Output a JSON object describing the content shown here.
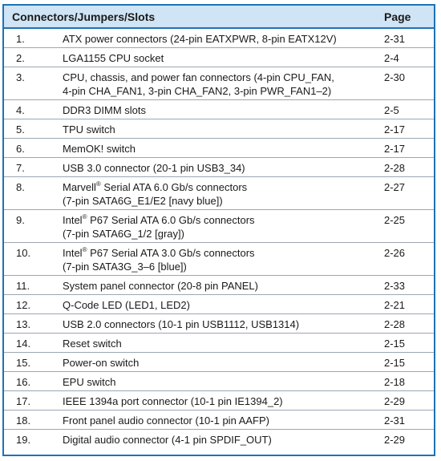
{
  "header": {
    "col_item": "Connectors/Jumpers/Slots",
    "col_page": "Page"
  },
  "rows": [
    {
      "num": "1.",
      "lines": [
        "ATX power connectors (24-pin EATXPWR, 8-pin EATX12V)"
      ],
      "page": "2-31"
    },
    {
      "num": "2.",
      "lines": [
        "LGA1155 CPU socket"
      ],
      "page": "2-4"
    },
    {
      "num": "3.",
      "lines": [
        "CPU, chassis, and power fan connectors (4-pin CPU_FAN,",
        "4-pin CHA_FAN1, 3-pin CHA_FAN2, 3-pin PWR_FAN1–2)"
      ],
      "page": "2-30"
    },
    {
      "num": "4.",
      "lines": [
        "DDR3 DIMM slots"
      ],
      "page": "2-5"
    },
    {
      "num": "5.",
      "lines": [
        "TPU switch"
      ],
      "page": "2-17"
    },
    {
      "num": "6.",
      "lines": [
        "MemOK! switch"
      ],
      "page": "2-17"
    },
    {
      "num": "7.",
      "lines": [
        "USB 3.0 connector (20-1 pin USB3_34)"
      ],
      "page": "2-28"
    },
    {
      "num": "8.",
      "lines": [
        "Marvell® Serial ATA 6.0 Gb/s connectors",
        "(7-pin SATA6G_E1/E2 [navy blue])"
      ],
      "page": "2-27"
    },
    {
      "num": "9.",
      "lines": [
        "Intel® P67 Serial ATA 6.0 Gb/s connectors",
        "(7-pin SATA6G_1/2 [gray])"
      ],
      "page": "2-25"
    },
    {
      "num": "10.",
      "lines": [
        "Intel® P67 Serial ATA 3.0 Gb/s connectors",
        "(7-pin SATA3G_3–6 [blue])"
      ],
      "page": "2-26"
    },
    {
      "num": "11.",
      "lines": [
        "System panel connector (20-8 pin PANEL)"
      ],
      "page": "2-33"
    },
    {
      "num": "12.",
      "lines": [
        "Q-Code LED (LED1, LED2)"
      ],
      "page": "2-21"
    },
    {
      "num": "13.",
      "lines": [
        "USB 2.0 connectors (10-1 pin USB1112, USB1314)"
      ],
      "page": "2-28"
    },
    {
      "num": "14.",
      "lines": [
        "Reset switch"
      ],
      "page": "2-15"
    },
    {
      "num": "15.",
      "lines": [
        "Power-on switch"
      ],
      "page": "2-15"
    },
    {
      "num": "16.",
      "lines": [
        "EPU switch"
      ],
      "page": "2-18"
    },
    {
      "num": "17.",
      "lines": [
        "IEEE 1394a port connector (10-1 pin IE1394_2)"
      ],
      "page": "2-29"
    },
    {
      "num": "18.",
      "lines": [
        "Front panel audio connector (10-1 pin AAFP)"
      ],
      "page": "2-31"
    },
    {
      "num": "19.",
      "lines": [
        "Digital audio connector (4-1 pin SPDIF_OUT)"
      ],
      "page": "2-29"
    }
  ]
}
